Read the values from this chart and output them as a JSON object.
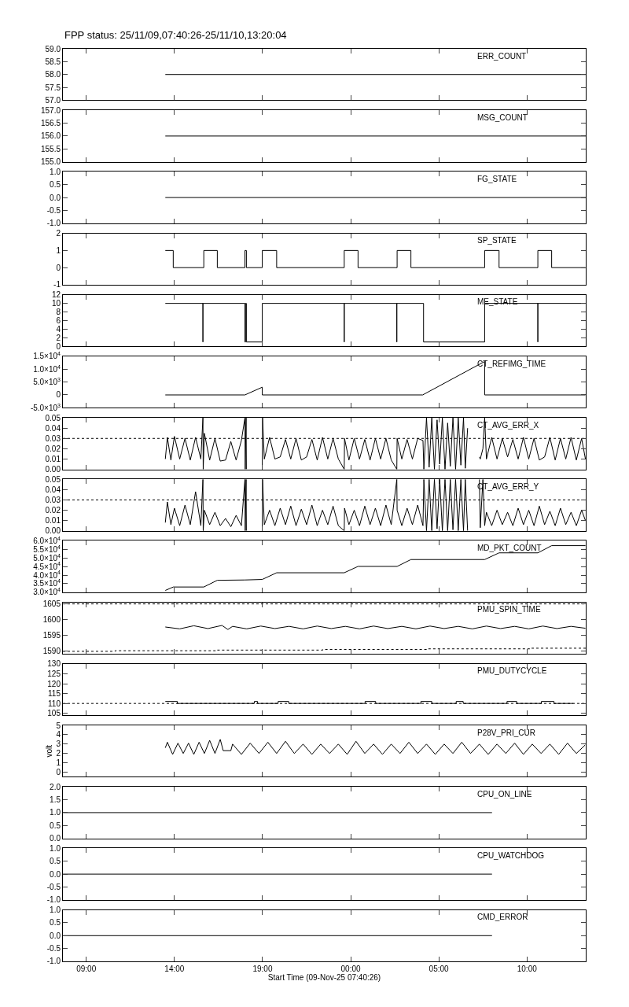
{
  "chart_data": [
    {
      "type": "line",
      "title": "FPP status: 25/11/09,07:40:26-25/11/10,13:20:04",
      "xlim": [
        "--11-09T07:40:26",
        "--11-10T13:20:04"
      ],
      "xticks": [
        {
          "value": "--11-09T09:00",
          "label": "09:00"
        },
        {
          "value": "--11-09T14:00",
          "label": "14:00"
        },
        {
          "value": "--11-09T19:00",
          "label": "19:00"
        },
        {
          "value": "--11-10T00:00",
          "label": "00:00"
        },
        {
          "value": "--11-10T05:00",
          "label": "05:00"
        },
        {
          "value": "--11-10T10:00",
          "label": "10:00"
        }
      ],
      "ylim": [
        57,
        59
      ],
      "yticks": [
        {
          "value": 57,
          "label": "57.0"
        },
        {
          "value": 57.5,
          "label": "57.5"
        },
        {
          "value": 58,
          "label": "58.0"
        },
        {
          "value": 58.5,
          "label": "58.5"
        },
        {
          "value": 59,
          "label": "59.0"
        }
      ],
      "tick_labels": "y",
      "series": [
        {
          "name": "ERR_COUNT",
          "color": "#000000",
          "x": [
            "--11-09T13:29",
            "--11-10T13:20:04"
          ],
          "values": [
            58,
            58
          ]
        }
      ]
    },
    {
      "type": "line",
      "xlim": [
        "--11-09T07:40:26",
        "--11-10T13:20:04"
      ],
      "xticks": [
        {
          "value": "--11-09T09:00",
          "label": "09:00"
        },
        {
          "value": "--11-09T14:00",
          "label": "14:00"
        },
        {
          "value": "--11-09T19:00",
          "label": "19:00"
        },
        {
          "value": "--11-10T00:00",
          "label": "00:00"
        },
        {
          "value": "--11-10T05:00",
          "label": "05:00"
        },
        {
          "value": "--11-10T10:00",
          "label": "10:00"
        }
      ],
      "ylim": [
        155,
        157
      ],
      "yticks": [
        {
          "value": 155,
          "label": "155.0"
        },
        {
          "value": 155.5,
          "label": "155.5"
        },
        {
          "value": 156,
          "label": "156.0"
        },
        {
          "value": 156.5,
          "label": "156.5"
        },
        {
          "value": 157,
          "label": "157.0"
        }
      ],
      "tick_labels": "y",
      "series": [
        {
          "name": "MSG_COUNT",
          "color": "#000000",
          "x": [
            "--11-09T13:29",
            "--11-10T13:20:04"
          ],
          "values": [
            156,
            156
          ]
        }
      ]
    },
    {
      "type": "line",
      "xlim": [
        "--11-09T07:40:26",
        "--11-10T13:20:04"
      ],
      "xticks": [
        {
          "value": "--11-09T09:00",
          "label": "09:00"
        },
        {
          "value": "--11-09T14:00",
          "label": "14:00"
        },
        {
          "value": "--11-09T19:00",
          "label": "19:00"
        },
        {
          "value": "--11-10T00:00",
          "label": "00:00"
        },
        {
          "value": "--11-10T05:00",
          "label": "05:00"
        },
        {
          "value": "--11-10T10:00",
          "label": "10:00"
        }
      ],
      "ylim": [
        -1,
        1
      ],
      "yticks": [
        {
          "value": -1,
          "label": "-1.0"
        },
        {
          "value": -0.5,
          "label": "-0.5"
        },
        {
          "value": 0,
          "label": "0.0"
        },
        {
          "value": 0.5,
          "label": "0.5"
        },
        {
          "value": 1,
          "label": "1.0"
        }
      ],
      "tick_labels": "y",
      "series": [
        {
          "name": "FG_STATE",
          "color": "#000000",
          "x": [
            "--11-09T13:29",
            "--11-10T13:20:04"
          ],
          "values": [
            0,
            0
          ]
        }
      ]
    },
    {
      "type": "line",
      "xlim": [
        "--11-09T07:40:26",
        "--11-10T13:20:04"
      ],
      "xticks": [
        {
          "value": "--11-09T09:00",
          "label": "09:00"
        },
        {
          "value": "--11-09T14:00",
          "label": "14:00"
        },
        {
          "value": "--11-09T19:00",
          "label": "19:00"
        },
        {
          "value": "--11-10T00:00",
          "label": "00:00"
        },
        {
          "value": "--11-10T05:00",
          "label": "05:00"
        },
        {
          "value": "--11-10T10:00",
          "label": "10:00"
        }
      ],
      "ylim": [
        -1,
        2
      ],
      "yticks": [
        -1,
        0,
        1,
        2
      ],
      "tick_labels": "y",
      "series": [
        {
          "name": "SP_STATE",
          "color": "#000000",
          "x": [
            "--11-09T13:29",
            "--11-09T13:56",
            "--11-09T13:56",
            "--11-09T15:40",
            "--11-09T15:40",
            "--11-09T16:26",
            "--11-09T16:26",
            "--11-09T18:00",
            "--11-09T18:00",
            "--11-09T18:05",
            "--11-09T18:05",
            "--11-09T18:59",
            "--11-09T18:59",
            "--11-09T19:48",
            "--11-09T19:48",
            "--11-09T23:38",
            "--11-09T23:38",
            "--11-10T00:25",
            "--11-10T00:25",
            "--11-10T02:38",
            "--11-10T02:38",
            "--11-10T03:25",
            "--11-10T03:25",
            "--11-10T07:36",
            "--11-10T07:36",
            "--11-10T08:25",
            "--11-10T08:25",
            "--11-10T10:37",
            "--11-10T10:37",
            "--11-10T11:24",
            "--11-10T11:24",
            "--11-10T13:19"
          ],
          "values": [
            1,
            1,
            0,
            0,
            1,
            1,
            0,
            0,
            1,
            1,
            0,
            0,
            1,
            1,
            0,
            0,
            1,
            1,
            0,
            0,
            1,
            1,
            0,
            0,
            1,
            1,
            0,
            0,
            1,
            1,
            0,
            0
          ]
        }
      ]
    },
    {
      "type": "line",
      "xlim": [
        "--11-09T07:40:26",
        "--11-10T13:20:04"
      ],
      "xticks": [
        {
          "value": "--11-09T09:00",
          "label": "09:00"
        },
        {
          "value": "--11-09T14:00",
          "label": "14:00"
        },
        {
          "value": "--11-09T19:00",
          "label": "19:00"
        },
        {
          "value": "--11-10T00:00",
          "label": "00:00"
        },
        {
          "value": "--11-10T05:00",
          "label": "05:00"
        },
        {
          "value": "--11-10T10:00",
          "label": "10:00"
        }
      ],
      "ylim": [
        0,
        12
      ],
      "yticks": [
        0,
        2,
        4,
        6,
        8,
        10,
        12
      ],
      "tick_labels": "y",
      "series": [
        {
          "name": "ME_STATE",
          "color": "#000000",
          "x": [
            "--11-09T13:29",
            "--11-09T15:37",
            "--11-09T15:37",
            "--11-09T15:37",
            "--11-09T18:00",
            "--11-09T18:00",
            "--11-09T18:02",
            "--11-09T18:02",
            "--11-09T18:05",
            "--11-09T18:05",
            "--11-09T18:59",
            "--11-09T18:59",
            "--11-09T23:38",
            "--11-09T23:38",
            "--11-09T23:38",
            "--11-10T02:37",
            "--11-10T02:37",
            "--11-10T02:37",
            "--11-10T04:08",
            "--11-10T04:08",
            "--11-10T07:36",
            "--11-10T07:36",
            "--11-10T10:37",
            "--11-10T10:37",
            "--11-10T10:37",
            "--11-10T13:19"
          ],
          "values": [
            10,
            10,
            1,
            10,
            10,
            1,
            1,
            10,
            10,
            1,
            1,
            10,
            10,
            1,
            10,
            10,
            1,
            10,
            10,
            1,
            1,
            10,
            10,
            1,
            10,
            10
          ]
        }
      ]
    },
    {
      "type": "line",
      "xlim": [
        "--11-09T07:40:26",
        "--11-10T13:20:04"
      ],
      "xticks": [
        {
          "value": "--11-09T09:00",
          "label": "09:00"
        },
        {
          "value": "--11-09T14:00",
          "label": "14:00"
        },
        {
          "value": "--11-09T19:00",
          "label": "19:00"
        },
        {
          "value": "--11-10T00:00",
          "label": "00:00"
        },
        {
          "value": "--11-10T05:00",
          "label": "05:00"
        },
        {
          "value": "--11-10T10:00",
          "label": "10:00"
        }
      ],
      "ylim": [
        -5000,
        15000
      ],
      "yticks": [
        {
          "value": -5000,
          "label": "-5.0×10$^{3}$"
        },
        0,
        {
          "value": 5000,
          "label": "5.0×10$^{3}$"
        },
        {
          "value": 10000,
          "label": "1.0×10$^{4}$"
        },
        {
          "value": 15000,
          "label": "1.5×10$^{4}$"
        }
      ],
      "tick_labels": "y",
      "series": [
        {
          "name": "CT_REFIMG_TIME",
          "color": "#000000",
          "x": [
            "--11-09T13:29",
            "--11-09T18:00",
            "--11-09T18:59",
            "--11-09T18:59",
            "--11-10T04:05",
            "--11-10T07:36",
            "--11-10T07:36",
            "--11-10T13:19"
          ],
          "values": [
            0,
            0,
            3000,
            0,
            0,
            13000,
            0,
            0
          ]
        }
      ]
    },
    {
      "type": "line",
      "xlim": [
        "--11-09T07:40:26",
        "--11-10T13:20:04"
      ],
      "xticks": [
        {
          "value": "--11-09T09:00",
          "label": "09:00"
        },
        {
          "value": "--11-09T14:00",
          "label": "14:00"
        },
        {
          "value": "--11-09T19:00",
          "label": "19:00"
        },
        {
          "value": "--11-10T00:00",
          "label": "00:00"
        },
        {
          "value": "--11-10T05:00",
          "label": "05:00"
        },
        {
          "value": "--11-10T10:00",
          "label": "10:00"
        }
      ],
      "ylim": [
        0,
        0.05
      ],
      "yticks": [
        {
          "value": 0,
          "label": "0.00"
        },
        {
          "value": 0.01,
          "label": "0.01"
        },
        {
          "value": 0.02,
          "label": "0.02"
        },
        {
          "value": 0.03,
          "label": "0.03"
        },
        {
          "value": 0.04,
          "label": "0.04"
        },
        {
          "value": 0.05,
          "label": "0.05"
        }
      ],
      "tick_labels": "y",
      "ref_lines": [
        {
          "axis": "y",
          "value": 0.03,
          "line_style": "dotted",
          "color": "#000000"
        }
      ],
      "series": [
        {
          "name": "CT_AVG_ERR_X",
          "color": "#000000",
          "x": [
            "--11-09T13:29",
            "--11-09T13:36",
            "--11-09T13:48",
            "--11-09T14:00",
            "--11-09T14:18",
            "--11-09T14:36",
            "--11-09T14:54",
            "--11-09T15:12",
            "--11-09T15:30",
            "--11-09T15:37",
            "--11-09T15:38",
            "--11-09T15:42",
            "--11-09T16:00",
            "--11-09T16:18",
            "--11-09T16:36",
            "--11-09T16:54",
            "--11-09T17:12",
            "--11-09T17:30",
            "--11-09T17:48",
            "--11-09T18:00",
            "--11-09T18:01",
            "--11-09T18:04",
            "--11-09T18:05",
            "--11-09T18:06",
            "--11-09T18:59",
            "--11-09T19:00",
            "--11-09T19:06",
            "--11-09T19:24",
            "--11-09T19:42",
            "--11-09T20:00",
            "--11-09T20:18",
            "--11-09T20:36",
            "--11-09T20:54",
            "--11-09T21:12",
            "--11-09T21:30",
            "--11-09T21:48",
            "--11-09T22:06",
            "--11-09T22:24",
            "--11-09T22:42",
            "--11-09T23:00",
            "--11-09T23:18",
            "--11-09T23:38",
            "--11-09T23:39",
            "--11-09T23:54",
            "--11-10T00:12",
            "--11-10T00:30",
            "--11-10T00:48",
            "--11-10T01:06",
            "--11-10T01:24",
            "--11-10T01:42",
            "--11-10T02:00",
            "--11-10T02:18",
            "--11-10T02:37",
            "--11-10T02:38",
            "--11-10T02:54",
            "--11-10T03:12",
            "--11-10T03:30",
            "--11-10T03:48",
            "--11-10T04:06",
            "--11-10T04:09",
            "--11-10T04:18",
            "--11-10T04:27",
            "--11-10T04:36",
            "--11-10T04:45",
            "--11-10T04:54",
            "--11-10T05:03",
            "--11-10T05:12",
            "--11-10T05:21",
            "--11-10T05:30",
            "--11-10T05:39",
            "--11-10T05:48",
            "--11-10T05:57",
            "--11-10T06:06",
            "--11-10T06:15",
            "--11-10T06:24",
            "--11-10T06:30",
            "--11-10T06:38",
            "--11-10T06:39",
            "--11-10T07:18",
            "--11-10T07:21",
            "--11-10T07:30",
            "--11-10T07:36",
            "--11-10T07:42",
            "--11-10T08:00",
            "--11-10T08:18",
            "--11-10T08:36",
            "--11-10T08:54",
            "--11-10T09:12",
            "--11-10T09:30",
            "--11-10T09:48",
            "--11-10T10:06",
            "--11-10T10:24",
            "--11-10T10:42",
            "--11-10T11:00",
            "--11-10T11:18",
            "--11-10T11:36",
            "--11-10T11:54",
            "--11-10T12:12",
            "--11-10T12:30",
            "--11-10T12:48",
            "--11-10T13:06",
            "--11-10T13:19"
          ],
          "values": [
            0.01,
            0.031,
            0.009,
            0.032,
            0.01,
            0.03,
            0.009,
            0.031,
            0.01,
            0.05,
            0.0,
            0.035,
            0.009,
            0.03,
            0.008,
            0.009,
            0.027,
            0.009,
            0.028,
            0.05,
            0.0,
            0.05,
            0.0,
            null,
            0.0,
            0.05,
            0.01,
            0.031,
            0.01,
            0.012,
            0.029,
            0.01,
            0.03,
            0.009,
            0.012,
            0.029,
            0.009,
            0.031,
            0.01,
            0.03,
            0.01,
            0.0,
            0.03,
            0.009,
            0.03,
            0.01,
            0.029,
            0.009,
            0.03,
            0.01,
            0.03,
            0.009,
            0.0,
            0.03,
            0.01,
            0.029,
            0.01,
            0.03,
            0.028,
            0.0,
            0.05,
            0.002,
            0.05,
            0.0,
            0.048,
            0.005,
            0.05,
            0.0,
            0.045,
            0.003,
            0.05,
            0.0,
            0.05,
            0.004,
            0.05,
            0.001,
            0.04,
            null,
            0.012,
            0.01,
            0.02,
            0.05,
            0.01,
            0.031,
            0.01,
            0.03,
            0.012,
            0.029,
            0.01,
            0.031,
            0.01,
            0.03,
            0.009,
            0.012,
            0.031,
            0.009,
            0.03,
            0.01,
            0.031,
            0.009,
            0.03,
            0.01
          ]
        }
      ]
    },
    {
      "type": "line",
      "xlim": [
        "--11-09T07:40:26",
        "--11-10T13:20:04"
      ],
      "xticks": [
        {
          "value": "--11-09T09:00",
          "label": "09:00"
        },
        {
          "value": "--11-09T14:00",
          "label": "14:00"
        },
        {
          "value": "--11-09T19:00",
          "label": "19:00"
        },
        {
          "value": "--11-10T00:00",
          "label": "00:00"
        },
        {
          "value": "--11-10T05:00",
          "label": "05:00"
        },
        {
          "value": "--11-10T10:00",
          "label": "10:00"
        }
      ],
      "ylim": [
        0,
        0.05
      ],
      "yticks": [
        {
          "value": 0,
          "label": "0.00"
        },
        {
          "value": 0.01,
          "label": "0.01"
        },
        {
          "value": 0.02,
          "label": "0.02"
        },
        {
          "value": 0.03,
          "label": "0.03"
        },
        {
          "value": 0.04,
          "label": "0.04"
        },
        {
          "value": 0.05,
          "label": "0.05"
        }
      ],
      "tick_labels": "y",
      "ref_lines": [
        {
          "axis": "y",
          "value": 0.03,
          "line_style": "dotted",
          "color": "#000000"
        }
      ],
      "series": [
        {
          "name": "CT_AVG_ERR_Y",
          "color": "#000000",
          "x": [
            "--11-09T13:29",
            "--11-09T13:36",
            "--11-09T13:48",
            "--11-09T14:00",
            "--11-09T14:18",
            "--11-09T14:36",
            "--11-09T14:54",
            "--11-09T15:12",
            "--11-09T15:30",
            "--11-09T15:37",
            "--11-09T15:38",
            "--11-09T15:42",
            "--11-09T16:00",
            "--11-09T16:18",
            "--11-09T16:36",
            "--11-09T16:54",
            "--11-09T17:12",
            "--11-09T17:30",
            "--11-09T17:48",
            "--11-09T18:00",
            "--11-09T18:01",
            "--11-09T18:04",
            "--11-09T18:05",
            "--11-09T18:06",
            "--11-09T18:59",
            "--11-09T19:00",
            "--11-09T19:06",
            "--11-09T19:24",
            "--11-09T19:42",
            "--11-09T20:00",
            "--11-09T20:18",
            "--11-09T20:36",
            "--11-09T20:54",
            "--11-09T21:12",
            "--11-09T21:30",
            "--11-09T21:48",
            "--11-09T22:06",
            "--11-09T22:24",
            "--11-09T22:42",
            "--11-09T23:00",
            "--11-09T23:18",
            "--11-09T23:38",
            "--11-09T23:39",
            "--11-09T23:54",
            "--11-10T00:12",
            "--11-10T00:30",
            "--11-10T00:48",
            "--11-10T01:06",
            "--11-10T01:24",
            "--11-10T01:42",
            "--11-10T02:00",
            "--11-10T02:18",
            "--11-10T02:37",
            "--11-10T02:38",
            "--11-10T02:54",
            "--11-10T03:12",
            "--11-10T03:30",
            "--11-10T03:48",
            "--11-10T04:06",
            "--11-10T04:09",
            "--11-10T04:18",
            "--11-10T04:27",
            "--11-10T04:36",
            "--11-10T04:45",
            "--11-10T04:54",
            "--11-10T05:03",
            "--11-10T05:12",
            "--11-10T05:21",
            "--11-10T05:30",
            "--11-10T05:39",
            "--11-10T05:48",
            "--11-10T05:57",
            "--11-10T06:06",
            "--11-10T06:15",
            "--11-10T06:24",
            "--11-10T06:30",
            "--11-10T06:38",
            "--11-10T06:39",
            "--11-10T07:18",
            "--11-10T07:21",
            "--11-10T07:30",
            "--11-10T07:36",
            "--11-10T07:42",
            "--11-10T08:00",
            "--11-10T08:18",
            "--11-10T08:36",
            "--11-10T08:54",
            "--11-10T09:12",
            "--11-10T09:30",
            "--11-10T09:48",
            "--11-10T10:06",
            "--11-10T10:24",
            "--11-10T10:42",
            "--11-10T11:00",
            "--11-10T11:18",
            "--11-10T11:36",
            "--11-10T11:54",
            "--11-10T12:12",
            "--11-10T12:30",
            "--11-10T12:48",
            "--11-10T13:06",
            "--11-10T13:19"
          ],
          "values": [
            0.008,
            0.028,
            0.006,
            0.022,
            0.005,
            0.025,
            0.006,
            0.038,
            0.005,
            0.05,
            0.0,
            0.02,
            0.006,
            0.018,
            0.005,
            0.012,
            0.004,
            0.015,
            0.005,
            0.05,
            0.0,
            0.05,
            0.0,
            null,
            0.0,
            0.05,
            0.006,
            0.02,
            0.005,
            0.022,
            0.006,
            0.024,
            0.005,
            0.021,
            0.006,
            0.025,
            0.005,
            0.02,
            0.006,
            0.024,
            0.005,
            0.0,
            0.022,
            0.006,
            0.02,
            0.005,
            0.024,
            0.006,
            0.022,
            0.005,
            0.025,
            0.006,
            0.05,
            0.02,
            0.005,
            0.022,
            0.006,
            0.025,
            0.005,
            0.05,
            0.0,
            0.05,
            0.0,
            0.05,
            0.002,
            0.05,
            0.0,
            0.05,
            0.0,
            0.05,
            0.001,
            0.05,
            0.0,
            0.05,
            0.0,
            0.05,
            0.0,
            null,
            0.05,
            0.003,
            0.05,
            0.005,
            0.018,
            0.005,
            0.02,
            0.006,
            0.018,
            0.005,
            0.022,
            0.006,
            0.02,
            0.005,
            0.024,
            0.006,
            0.019,
            0.005,
            0.022,
            0.006,
            0.018,
            0.005,
            0.02,
            0.01
          ]
        }
      ]
    },
    {
      "type": "line",
      "xlim": [
        "--11-09T07:40:26",
        "--11-10T13:20:04"
      ],
      "xticks": [
        {
          "value": "--11-09T09:00",
          "label": "09:00"
        },
        {
          "value": "--11-09T14:00",
          "label": "14:00"
        },
        {
          "value": "--11-09T19:00",
          "label": "19:00"
        },
        {
          "value": "--11-10T00:00",
          "label": "00:00"
        },
        {
          "value": "--11-10T05:00",
          "label": "05:00"
        },
        {
          "value": "--11-10T10:00",
          "label": "10:00"
        }
      ],
      "ylim": [
        30000,
        60000
      ],
      "yticks": [
        {
          "value": 30000,
          "label": "3.0×10$^{4}$"
        },
        {
          "value": 35000,
          "label": "3.5×10$^{4}$"
        },
        {
          "value": 40000,
          "label": "4.0×10$^{4}$"
        },
        {
          "value": 45000,
          "label": "4.5×10$^{4}$"
        },
        {
          "value": 50000,
          "label": "5.0×10$^{4}$"
        },
        {
          "value": 55000,
          "label": "5.5×10$^{4}$"
        },
        {
          "value": 60000,
          "label": "6.0×10$^{4}$"
        }
      ],
      "tick_labels": "y",
      "series": [
        {
          "name": "MD_PKT_COUNT",
          "color": "#000000",
          "x": [
            "--11-09T13:29",
            "--11-09T13:56",
            "--11-09T15:40",
            "--11-09T16:26",
            "--11-09T18:00",
            "--11-09T18:59",
            "--11-09T19:48",
            "--11-09T23:38",
            "--11-10T00:25",
            "--11-10T02:38",
            "--11-10T03:25",
            "--11-10T07:36",
            "--11-10T08:25",
            "--11-10T10:37",
            "--11-10T11:24",
            "--11-10T13:19"
          ],
          "values": [
            31100,
            33100,
            33100,
            37000,
            37200,
            37500,
            41400,
            41400,
            45100,
            45100,
            49100,
            49100,
            53000,
            53000,
            57200,
            57200
          ]
        }
      ]
    },
    {
      "type": "line",
      "xlim": [
        "--11-09T07:40:26",
        "--11-10T13:20:04"
      ],
      "xticks": [
        {
          "value": "--11-09T09:00",
          "label": "09:00"
        },
        {
          "value": "--11-09T14:00",
          "label": "14:00"
        },
        {
          "value": "--11-09T19:00",
          "label": "19:00"
        },
        {
          "value": "--11-10T00:00",
          "label": "00:00"
        },
        {
          "value": "--11-10T05:00",
          "label": "05:00"
        },
        {
          "value": "--11-10T10:00",
          "label": "10:00"
        }
      ],
      "ylim": [
        1589,
        1605.5
      ],
      "yticks": [
        1590,
        1595,
        1600,
        1605
      ],
      "tick_labels": "y",
      "ref_lines": [
        {
          "axis": "y",
          "value": 1605,
          "line_style": "dotted",
          "color": "#000000"
        }
      ],
      "series": [
        {
          "name": "PMU_SPIN_TIME",
          "color": "#000000",
          "x": [
            "--11-09T13:29",
            "--11-09T14:18",
            "--11-09T15:06",
            "--11-09T15:54",
            "--11-09T16:42",
            "--11-09T17:02",
            "--11-09T17:18",
            "--11-09T18:06",
            "--11-09T18:54",
            "--11-09T19:42",
            "--11-09T20:30",
            "--11-09T21:18",
            "--11-09T22:06",
            "--11-09T22:54",
            "--11-09T23:42",
            "--11-10T00:30",
            "--11-10T01:18",
            "--11-10T02:06",
            "--11-10T02:54",
            "--11-10T03:42",
            "--11-10T04:30",
            "--11-10T05:18",
            "--11-10T06:06",
            "--11-10T06:54",
            "--11-10T07:42",
            "--11-10T08:30",
            "--11-10T09:18",
            "--11-10T10:06",
            "--11-10T10:54",
            "--11-10T11:42",
            "--11-10T12:30",
            "--11-10T13:19"
          ],
          "values": [
            1597.6,
            1597.0,
            1598.0,
            1597.1,
            1598.1,
            1596.8,
            1597.8,
            1597.0,
            1597.9,
            1597.1,
            1597.8,
            1597.0,
            1597.9,
            1597.1,
            1597.8,
            1597.0,
            1597.9,
            1597.1,
            1597.8,
            1597.0,
            1597.9,
            1597.1,
            1597.8,
            1597.0,
            1597.9,
            1597.1,
            1597.8,
            1597.0,
            1597.9,
            1597.1,
            1597.8,
            1597.2
          ]
        },
        {
          "type": "step",
          "color": "#000000",
          "line_style": "dotted",
          "x": [
            "--11-09T07:40:26",
            "--11-09T10:38",
            "--11-09T16:25",
            "--11-09T22:25",
            "--11-10T04:19",
            "--11-10T10:12",
            "--11-10T13:20:04"
          ],
          "values": [
            1589.8,
            1590.0,
            1590.2,
            1590.4,
            1590.6,
            1590.8,
            1590.8
          ]
        }
      ]
    },
    {
      "type": "line",
      "xlim": [
        "--11-09T07:40:26",
        "--11-10T13:20:04"
      ],
      "xticks": [
        {
          "value": "--11-09T09:00",
          "label": "09:00"
        },
        {
          "value": "--11-09T14:00",
          "label": "14:00"
        },
        {
          "value": "--11-09T19:00",
          "label": "19:00"
        },
        {
          "value": "--11-10T00:00",
          "label": "00:00"
        },
        {
          "value": "--11-10T05:00",
          "label": "05:00"
        },
        {
          "value": "--11-10T10:00",
          "label": "10:00"
        }
      ],
      "ylim": [
        104,
        130
      ],
      "yticks": [
        105,
        110,
        115,
        120,
        125,
        130
      ],
      "tick_labels": "y",
      "ref_lines": [
        {
          "axis": "y",
          "value": 110,
          "line_style": "dotted",
          "color": "#000000"
        }
      ],
      "series": [
        {
          "name": "PMU_DUTYCYCLE",
          "color": "#000000",
          "x": [
            "--11-09T13:29",
            "--11-09T14:10",
            "--11-09T14:10",
            "--11-09T18:32",
            "--11-09T18:32",
            "--11-09T18:43",
            "--11-09T18:43",
            "--11-09T19:53",
            "--11-09T19:53",
            "--11-09T20:29",
            "--11-09T20:29",
            "--11-10T00:49",
            "--11-10T00:49",
            "--11-10T01:25",
            "--11-10T01:25",
            "--11-10T03:59",
            "--11-10T03:59",
            "--11-10T04:36",
            "--11-10T04:36",
            "--11-10T05:59",
            "--11-10T05:59",
            "--11-10T06:23",
            "--11-10T06:23",
            "--11-10T08:52",
            "--11-10T08:52",
            "--11-10T09:25",
            "--11-10T09:25",
            "--11-10T10:49",
            "--11-10T10:49",
            "--11-10T11:32",
            "--11-10T11:32",
            "--11-10T12:38"
          ],
          "values": [
            111,
            111,
            110,
            110,
            111,
            111,
            110,
            110,
            111,
            111,
            110,
            110,
            111,
            111,
            110,
            110,
            111,
            111,
            110,
            110,
            111,
            111,
            110,
            110,
            111,
            111,
            110,
            110,
            111,
            111,
            110,
            110
          ]
        }
      ]
    },
    {
      "type": "line",
      "ylabel": "volt",
      "xlim": [
        "--11-09T07:40:26",
        "--11-10T13:20:04"
      ],
      "xticks": [
        {
          "value": "--11-09T09:00",
          "label": "09:00"
        },
        {
          "value": "--11-09T14:00",
          "label": "14:00"
        },
        {
          "value": "--11-09T19:00",
          "label": "19:00"
        },
        {
          "value": "--11-10T00:00",
          "label": "00:00"
        },
        {
          "value": "--11-10T05:00",
          "label": "05:00"
        },
        {
          "value": "--11-10T10:00",
          "label": "10:00"
        }
      ],
      "ylim": [
        -0.5,
        5
      ],
      "yticks": [
        0,
        1,
        2,
        3,
        4,
        5
      ],
      "tick_labels": "y",
      "series": [
        {
          "name": "P28V_PRI_CUR",
          "color": "#000000",
          "x": [
            "--11-09T13:29",
            "--11-09T13:36",
            "--11-09T13:54",
            "--11-09T14:12",
            "--11-09T14:30",
            "--11-09T14:48",
            "--11-09T15:06",
            "--11-09T15:24",
            "--11-09T15:42",
            "--11-09T16:00",
            "--11-09T16:18",
            "--11-09T16:36",
            "--11-09T16:46",
            "--11-09T17:12",
            "--11-09T17:18",
            "--11-09T17:48",
            "--11-09T18:18",
            "--11-09T18:48",
            "--11-09T19:18",
            "--11-09T19:48",
            "--11-09T20:18",
            "--11-09T20:48",
            "--11-09T21:18",
            "--11-09T21:48",
            "--11-09T22:18",
            "--11-09T22:48",
            "--11-09T23:18",
            "--11-09T23:48",
            "--11-10T00:18",
            "--11-10T00:48",
            "--11-10T01:18",
            "--11-10T01:48",
            "--11-10T02:18",
            "--11-10T02:48",
            "--11-10T03:18",
            "--11-10T03:48",
            "--11-10T04:18",
            "--11-10T04:48",
            "--11-10T05:18",
            "--11-10T05:48",
            "--11-10T06:18",
            "--11-10T06:48",
            "--11-10T07:18",
            "--11-10T07:48",
            "--11-10T08:18",
            "--11-10T08:48",
            "--11-10T09:18",
            "--11-10T09:48",
            "--11-10T10:18",
            "--11-10T10:48",
            "--11-10T11:18",
            "--11-10T11:48",
            "--11-10T12:18",
            "--11-10T12:48",
            "--11-10T13:18"
          ],
          "values": [
            2.6,
            3.2,
            1.9,
            3.1,
            2.0,
            3.1,
            1.9,
            3.2,
            2.0,
            3.4,
            2.0,
            3.5,
            2.3,
            2.3,
            3.0,
            1.9,
            3.1,
            2.0,
            3.2,
            2.0,
            3.3,
            2.0,
            3.0,
            1.9,
            3.0,
            2.0,
            3.0,
            1.9,
            3.3,
            2.0,
            3.0,
            1.9,
            3.0,
            2.0,
            3.2,
            2.0,
            3.0,
            1.9,
            3.0,
            2.0,
            3.2,
            2.0,
            3.0,
            1.9,
            3.0,
            2.0,
            3.1,
            1.9,
            3.0,
            2.0,
            3.0,
            1.9,
            3.1,
            2.0,
            2.9
          ]
        }
      ]
    },
    {
      "type": "line",
      "xlim": [
        "--11-09T07:40:26",
        "--11-10T13:20:04"
      ],
      "xticks": [
        {
          "value": "--11-09T09:00",
          "label": "09:00"
        },
        {
          "value": "--11-09T14:00",
          "label": "14:00"
        },
        {
          "value": "--11-09T19:00",
          "label": "19:00"
        },
        {
          "value": "--11-10T00:00",
          "label": "00:00"
        },
        {
          "value": "--11-10T05:00",
          "label": "05:00"
        },
        {
          "value": "--11-10T10:00",
          "label": "10:00"
        }
      ],
      "ylim": [
        0,
        2
      ],
      "yticks": [
        {
          "value": 0,
          "label": "0.0"
        },
        {
          "value": 0.5,
          "label": "0.5"
        },
        {
          "value": 1,
          "label": "1.0"
        },
        {
          "value": 1.5,
          "label": "1.5"
        },
        {
          "value": 2,
          "label": "2.0"
        }
      ],
      "tick_labels": "y",
      "series": [
        {
          "name": "CPU_ON_LINE",
          "color": "#000000",
          "x": [
            "--11-09T07:40:26",
            "--11-10T08:01"
          ],
          "values": [
            1,
            1
          ]
        }
      ]
    },
    {
      "type": "line",
      "xlim": [
        "--11-09T07:40:26",
        "--11-10T13:20:04"
      ],
      "xticks": [
        {
          "value": "--11-09T09:00",
          "label": "09:00"
        },
        {
          "value": "--11-09T14:00",
          "label": "14:00"
        },
        {
          "value": "--11-09T19:00",
          "label": "19:00"
        },
        {
          "value": "--11-10T00:00",
          "label": "00:00"
        },
        {
          "value": "--11-10T05:00",
          "label": "05:00"
        },
        {
          "value": "--11-10T10:00",
          "label": "10:00"
        }
      ],
      "ylim": [
        -1,
        1
      ],
      "yticks": [
        {
          "value": -1,
          "label": "-1.0"
        },
        {
          "value": -0.5,
          "label": "-0.5"
        },
        {
          "value": 0,
          "label": "0.0"
        },
        {
          "value": 0.5,
          "label": "0.5"
        },
        {
          "value": 1,
          "label": "1.0"
        }
      ],
      "tick_labels": "y",
      "series": [
        {
          "name": "CPU_WATCHDOG",
          "color": "#000000",
          "x": [
            "--11-09T07:40:26",
            "--11-10T08:01"
          ],
          "values": [
            0,
            0
          ]
        }
      ]
    },
    {
      "type": "line",
      "xlabel": "Start Time (09-Nov-25 07:40:26)",
      "xlim": [
        "--11-09T07:40:26",
        "--11-10T13:20:04"
      ],
      "xticks": [
        {
          "value": "--11-09T09:00",
          "label": "09:00"
        },
        {
          "value": "--11-09T14:00",
          "label": "14:00"
        },
        {
          "value": "--11-09T19:00",
          "label": "19:00"
        },
        {
          "value": "--11-10T00:00",
          "label": "00:00"
        },
        {
          "value": "--11-10T05:00",
          "label": "05:00"
        },
        {
          "value": "--11-10T10:00",
          "label": "10:00"
        }
      ],
      "ylim": [
        -1,
        1
      ],
      "yticks": [
        {
          "value": -1,
          "label": "-1.0"
        },
        {
          "value": -0.5,
          "label": "-0.5"
        },
        {
          "value": 0,
          "label": "0.0"
        },
        {
          "value": 0.5,
          "label": "0.5"
        },
        {
          "value": 1,
          "label": "1.0"
        }
      ],
      "series": [
        {
          "name": "CMD_ERROR",
          "color": "#000000",
          "x": [
            "--11-09T07:40:26",
            "--11-10T08:01"
          ],
          "values": [
            0,
            0
          ]
        }
      ]
    }
  ]
}
